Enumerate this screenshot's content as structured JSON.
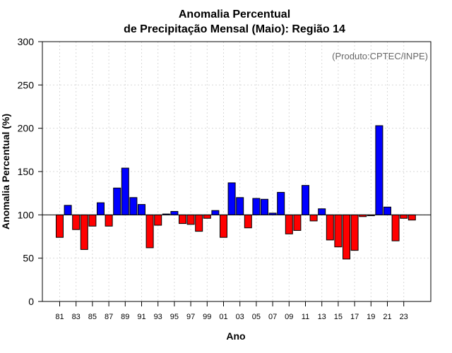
{
  "chart_data": {
    "type": "bar",
    "title_line1": "Anomalia Percentual",
    "title_line2": "de Precipitação Mensal (Maio): Região 14",
    "xlabel": "Ano",
    "ylabel": "Anomalia Percentual (%)",
    "annotation": "(Produto:CPTEC/INPE)",
    "ylim": [
      0,
      300
    ],
    "yticks": [
      0,
      50,
      100,
      150,
      200,
      250,
      300
    ],
    "baseline": 100,
    "categories": [
      "81",
      "82",
      "83",
      "84",
      "85",
      "86",
      "87",
      "88",
      "89",
      "90",
      "91",
      "92",
      "93",
      "94",
      "95",
      "96",
      "97",
      "98",
      "99",
      "00",
      "01",
      "02",
      "03",
      "04",
      "05",
      "06",
      "07",
      "08",
      "09",
      "10",
      "11",
      "12",
      "13",
      "14",
      "15",
      "16",
      "17",
      "18",
      "19",
      "20",
      "21",
      "22",
      "23",
      "24"
    ],
    "xtick_labels": [
      "81",
      "83",
      "85",
      "87",
      "89",
      "91",
      "93",
      "95",
      "97",
      "99",
      "01",
      "03",
      "05",
      "07",
      "09",
      "11",
      "13",
      "15",
      "17",
      "19",
      "21",
      "23"
    ],
    "values": [
      74,
      111,
      83,
      60,
      87,
      114,
      87,
      131,
      154,
      120,
      112,
      62,
      88,
      101,
      104,
      90,
      89,
      81,
      96,
      105,
      74,
      137,
      120,
      85,
      119,
      118,
      102,
      126,
      78,
      82,
      134,
      93,
      107,
      71,
      63,
      49,
      59,
      98,
      99,
      203,
      109,
      70,
      96,
      94
    ],
    "colors": {
      "above": "#0000ff",
      "below": "#ff0000",
      "edge": "#000000"
    }
  }
}
